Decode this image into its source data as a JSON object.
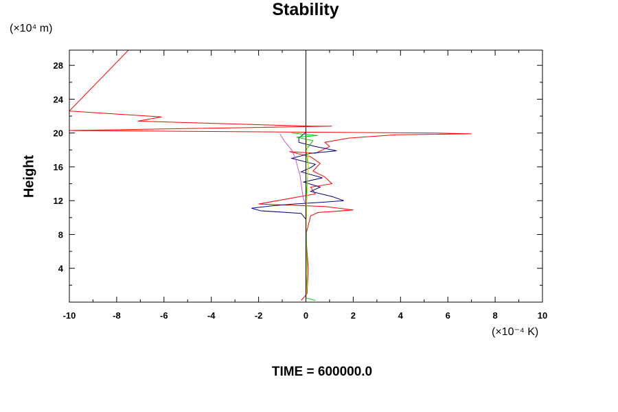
{
  "chart_data": {
    "type": "line",
    "title": "Stability",
    "ylabel": "Height",
    "y_unit_label": "(×10⁴ m)",
    "x_unit_label": "(×10⁻⁴ K)",
    "xlim": [
      -10,
      10
    ],
    "ylim": [
      0,
      29.8
    ],
    "x_ticks": [
      -10,
      -8,
      -6,
      -4,
      -2,
      0,
      2,
      4,
      6,
      8,
      10
    ],
    "y_ticks": [
      4,
      8,
      12,
      16,
      20,
      24,
      28
    ],
    "grid": false,
    "series": [
      {
        "color": "#ff0000",
        "points": [
          [
            -10,
            29.8
          ],
          [
            -7.5,
            29.8
          ],
          [
            -10,
            22.6
          ],
          [
            -6.1,
            21.9
          ],
          [
            -7.1,
            21.4
          ],
          [
            -2.2,
            21.0
          ],
          [
            0.3,
            20.8
          ],
          [
            1.1,
            20.8
          ],
          [
            -10,
            20.3
          ],
          [
            5.4,
            20.0
          ],
          [
            7.0,
            19.9
          ],
          [
            3.8,
            19.8
          ],
          [
            1.8,
            19.4
          ],
          [
            0.8,
            18.9
          ],
          [
            1.0,
            18.4
          ],
          [
            0.4,
            17.6
          ],
          [
            -0.7,
            17.8
          ],
          [
            0.2,
            17.2
          ],
          [
            0.6,
            16.4
          ],
          [
            0.3,
            15.5
          ],
          [
            0.8,
            14.8
          ],
          [
            1.1,
            14.0
          ],
          [
            0.2,
            13.6
          ],
          [
            0.4,
            12.8
          ],
          [
            -0.4,
            12.4
          ],
          [
            -2.0,
            11.6
          ],
          [
            0.8,
            11.3
          ],
          [
            2.0,
            10.9
          ],
          [
            0.5,
            10.6
          ],
          [
            0.2,
            10.2
          ],
          [
            0.0,
            8.0
          ],
          [
            0.1,
            4.0
          ],
          [
            0.05,
            1.0
          ],
          [
            -0.2,
            0.2
          ]
        ]
      },
      {
        "color": "#000080",
        "points": [
          [
            0.0,
            20.1
          ],
          [
            -0.3,
            19.4
          ],
          [
            -0.3,
            18.9
          ],
          [
            0.4,
            18.4
          ],
          [
            1.3,
            17.9
          ],
          [
            0.2,
            17.6
          ],
          [
            -0.6,
            17.0
          ],
          [
            0.4,
            16.3
          ],
          [
            0.2,
            15.9
          ],
          [
            -0.2,
            15.4
          ],
          [
            0.7,
            14.7
          ],
          [
            -0.1,
            14.2
          ],
          [
            0.6,
            13.6
          ],
          [
            0.2,
            13.1
          ],
          [
            1.1,
            12.5
          ],
          [
            1.6,
            12.0
          ],
          [
            0.6,
            11.8
          ],
          [
            -0.5,
            11.6
          ],
          [
            -1.4,
            11.4
          ],
          [
            -2.3,
            11.1
          ],
          [
            -1.9,
            10.8
          ],
          [
            -0.2,
            10.5
          ],
          [
            0.0,
            9.8
          ],
          [
            0.0,
            6.0
          ],
          [
            0.0,
            2.0
          ],
          [
            0.0,
            0.2
          ]
        ]
      },
      {
        "color": "#cc55cc",
        "points": [
          [
            -1.1,
            19.9
          ],
          [
            -0.9,
            19.0
          ],
          [
            -0.6,
            18.0
          ],
          [
            -0.45,
            17.0
          ],
          [
            -0.35,
            16.0
          ],
          [
            -0.25,
            15.0
          ],
          [
            -0.2,
            14.0
          ],
          [
            -0.15,
            13.0
          ],
          [
            -0.1,
            12.2
          ],
          [
            0.0,
            11.5
          ],
          [
            0.0,
            6.0
          ],
          [
            0.0,
            0.2
          ]
        ]
      },
      {
        "color": "#00cc00",
        "points": [
          [
            -0.6,
            20.0
          ],
          [
            0.5,
            19.7
          ],
          [
            -0.4,
            19.5
          ],
          [
            0.3,
            19.1
          ],
          [
            0.0,
            18.0
          ],
          [
            0.1,
            16.0
          ],
          [
            0.0,
            12.0
          ],
          [
            0.0,
            10.2
          ],
          [
            0.05,
            4.0
          ],
          [
            0.0,
            0.5
          ],
          [
            0.4,
            0.2
          ]
        ]
      },
      {
        "color": "#dddd00",
        "points": [
          [
            0.0,
            20.0
          ],
          [
            0.1,
            17.0
          ],
          [
            0.05,
            12.0
          ],
          [
            0.0,
            8.0
          ],
          [
            0.05,
            2.0
          ],
          [
            0.0,
            0.2
          ]
        ]
      }
    ]
  },
  "footer": {
    "time_label": "TIME = 600000.0"
  }
}
